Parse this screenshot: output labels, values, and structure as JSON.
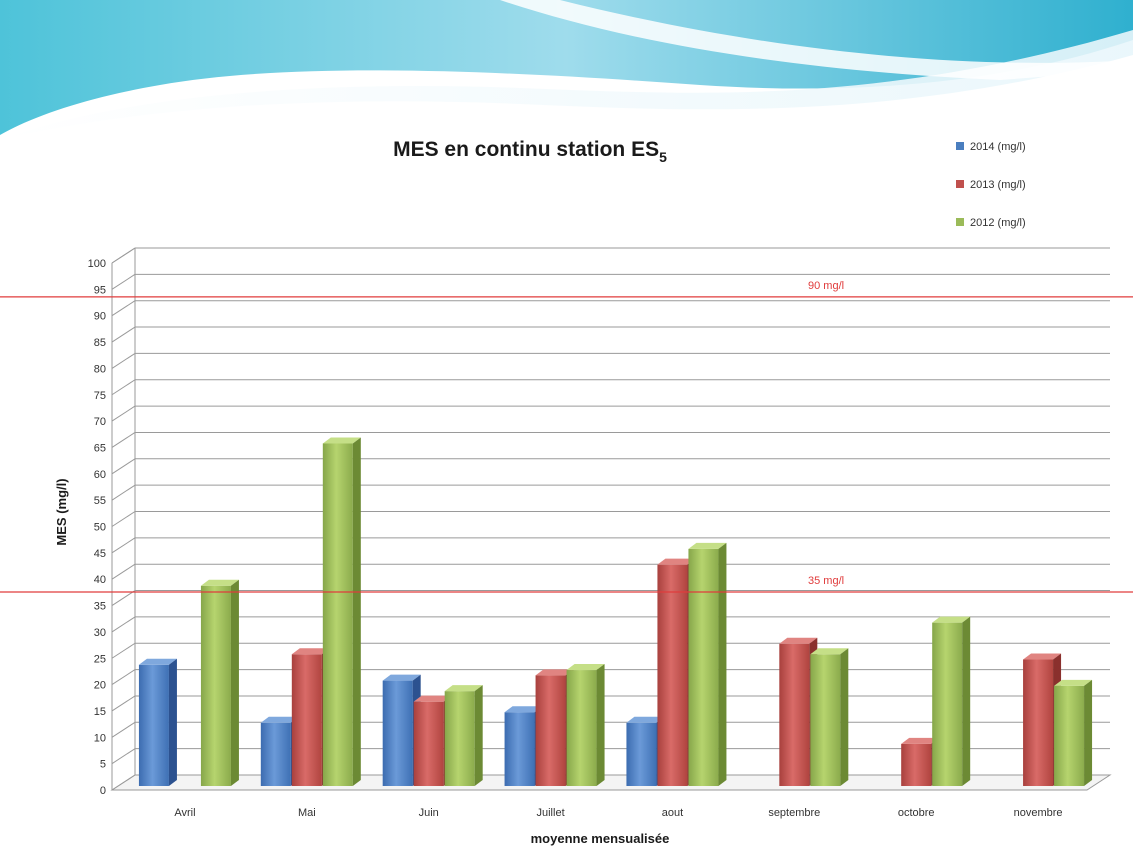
{
  "chart_data": {
    "type": "bar",
    "title": "MES en continu station ES",
    "title_subscript": "5",
    "xlabel": "moyenne mensualisée",
    "ylabel": "MES (mg/l)",
    "ylim": [
      0,
      100
    ],
    "ytick_step": 5,
    "grid": true,
    "legend_position": "top-right",
    "categories": [
      "Avril",
      "Mai",
      "Juin",
      "Juillet",
      "aout",
      "septembre",
      "octobre",
      "novembre"
    ],
    "series": [
      {
        "name": "2014 (mg/l)",
        "color": "#4a7ebf",
        "values": [
          23,
          12,
          20,
          14,
          12,
          null,
          null,
          null
        ]
      },
      {
        "name": "2013 (mg/l)",
        "color": "#c0504d",
        "values": [
          null,
          25,
          16,
          21,
          42,
          27,
          8,
          24
        ]
      },
      {
        "name": "2012 (mg/l)",
        "color": "#9bbb59",
        "values": [
          38,
          65,
          18,
          22,
          45,
          25,
          31,
          19
        ]
      }
    ],
    "reference_lines": [
      {
        "value": 93,
        "label": "90 mg/l",
        "color": "#e03c3c"
      },
      {
        "value": 37,
        "label": "35 mg/l",
        "color": "#e03c3c"
      }
    ]
  }
}
